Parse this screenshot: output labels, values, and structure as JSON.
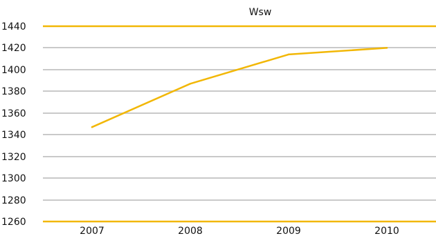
{
  "chart_data": {
    "type": "line",
    "title": "Wsw",
    "xlabel": "",
    "ylabel": "",
    "categories": [
      "2007",
      "2008",
      "2009",
      "2010"
    ],
    "series": [
      {
        "values": [
          1347,
          1387,
          1414,
          1420
        ]
      }
    ],
    "ylim": [
      1260,
      1440
    ],
    "yticks": [
      1260,
      1280,
      1300,
      1320,
      1340,
      1360,
      1380,
      1400,
      1420,
      1440
    ],
    "grid": true,
    "legend": "none",
    "colors": {
      "line": "#f2b705",
      "axis": "#f2b705",
      "grid": "#c9c9c9"
    }
  }
}
